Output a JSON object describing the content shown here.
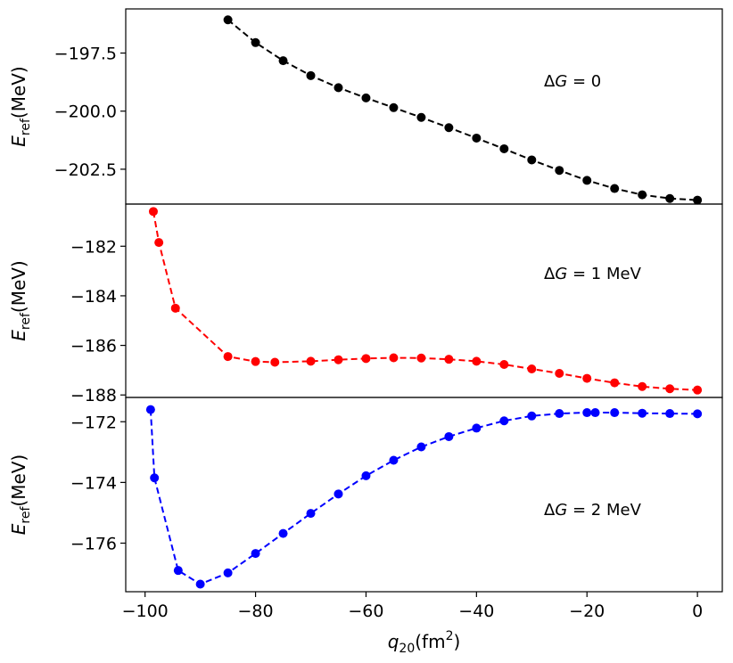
{
  "chart_data": [
    {
      "type": "line",
      "panel": "top",
      "annotation_html": "ΔG = 0",
      "annotation": {
        "prefix": "Δ",
        "var": "G",
        "rest": " = 0"
      },
      "ylabel": {
        "main": "E",
        "sub": "ref",
        "unit": "(MeV)"
      },
      "ylim": [
        -204.0,
        -195.6
      ],
      "yticks": [
        -197.5,
        -200.0,
        -202.5
      ],
      "ytick_labels": [
        "−197.5",
        "−200.0",
        "−202.5"
      ],
      "color": "#000000",
      "linestyle": "dashed",
      "x": [
        -85,
        -80,
        -75,
        -70,
        -65,
        -60,
        -55,
        -50,
        -45,
        -40,
        -35,
        -30,
        -25,
        -20,
        -15,
        -10,
        -5,
        0
      ],
      "y": [
        -196.07,
        -197.05,
        -197.83,
        -198.47,
        -198.99,
        -199.43,
        -199.85,
        -200.27,
        -200.71,
        -201.16,
        -201.62,
        -202.1,
        -202.55,
        -202.98,
        -203.33,
        -203.6,
        -203.76,
        -203.83
      ]
    },
    {
      "type": "line",
      "panel": "middle",
      "annotation": {
        "prefix": "Δ",
        "var": "G",
        "rest": " = 1 MeV"
      },
      "ylabel": {
        "main": "E",
        "sub": "ref",
        "unit": "(MeV)"
      },
      "ylim": [
        -188.1,
        -180.3
      ],
      "yticks": [
        -182,
        -184,
        -186,
        -188
      ],
      "ytick_labels": [
        "−182",
        "−184",
        "−186",
        "−188"
      ],
      "color": "#ff0000",
      "linestyle": "dashed",
      "x": [
        -98.5,
        -97.5,
        -94.5,
        -85,
        -80,
        -76.5,
        -70,
        -65,
        -60,
        -55,
        -50,
        -45,
        -40,
        -35,
        -30,
        -25,
        -20,
        -15,
        -10,
        -5,
        0
      ],
      "y": [
        -180.6,
        -181.85,
        -184.5,
        -186.45,
        -186.65,
        -186.68,
        -186.64,
        -186.58,
        -186.53,
        -186.5,
        -186.51,
        -186.56,
        -186.64,
        -186.77,
        -186.95,
        -187.13,
        -187.33,
        -187.51,
        -187.66,
        -187.75,
        -187.8
      ]
    },
    {
      "type": "line",
      "panel": "bottom",
      "annotation": {
        "prefix": "Δ",
        "var": "G",
        "rest": " = 2 MeV"
      },
      "ylabel": {
        "main": "E",
        "sub": "ref",
        "unit": "(MeV)"
      },
      "ylim": [
        -177.6,
        -171.2
      ],
      "yticks": [
        -172,
        -174,
        -176
      ],
      "ytick_labels": [
        "−172",
        "−174",
        "−176"
      ],
      "color": "#0000ff",
      "linestyle": "dashed",
      "x": [
        -99,
        -98.3,
        -94,
        -90,
        -85,
        -80,
        -75,
        -70,
        -65,
        -60,
        -55,
        -50,
        -45,
        -40,
        -35,
        -30,
        -25,
        -20,
        -18.5,
        -15,
        -10,
        -5,
        0
      ],
      "y": [
        -171.6,
        -173.85,
        -176.9,
        -177.35,
        -176.98,
        -176.34,
        -175.68,
        -175.02,
        -174.38,
        -173.78,
        -173.27,
        -172.83,
        -172.49,
        -172.21,
        -171.97,
        -171.81,
        -171.73,
        -171.7,
        -171.7,
        -171.7,
        -171.72,
        -171.73,
        -171.74
      ]
    }
  ],
  "x_axis": {
    "label": {
      "main": "q",
      "sub": "20",
      "unit_pre": "(fm",
      "sup": "2",
      "unit_post": ")"
    },
    "xlim": [
      -103.5,
      4.5
    ],
    "ticks": [
      -100,
      -80,
      -60,
      -40,
      -20,
      0
    ],
    "tick_labels": [
      "−100",
      "−80",
      "−60",
      "−40",
      "−20",
      "0"
    ]
  }
}
